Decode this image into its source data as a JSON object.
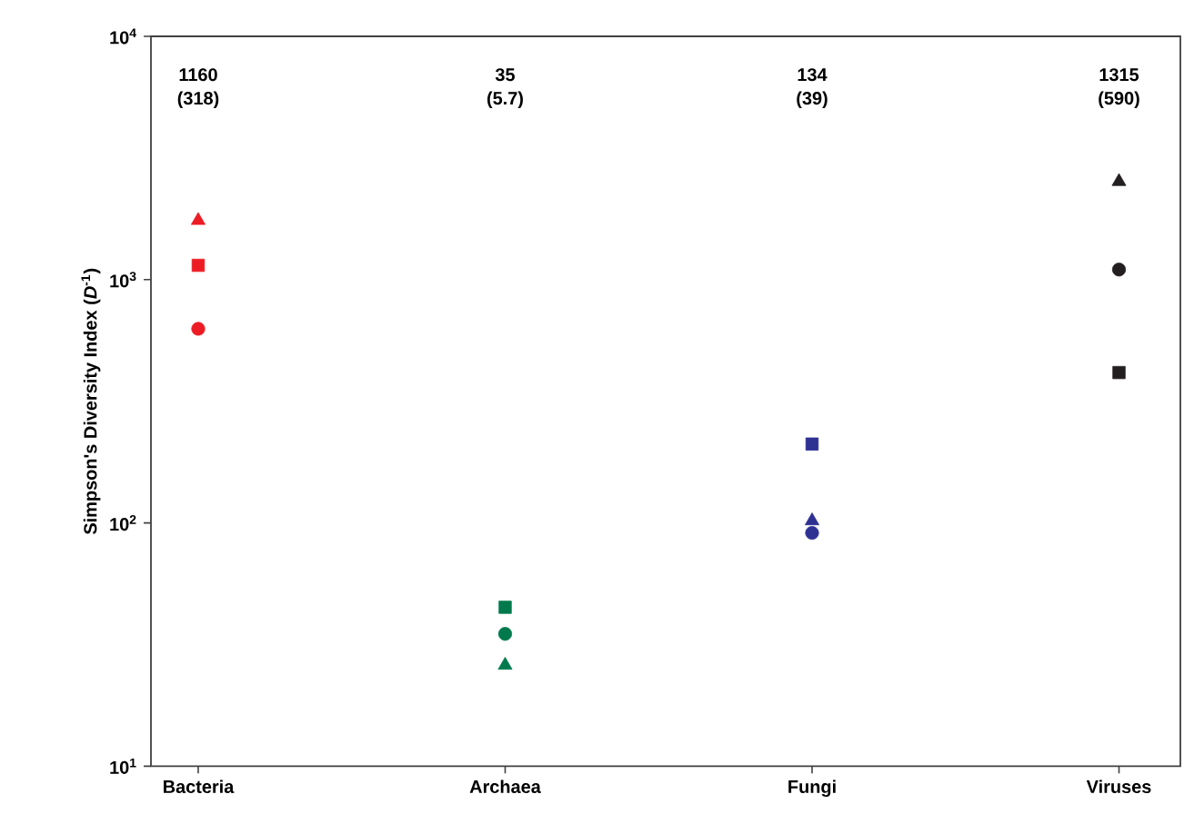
{
  "chart_data": {
    "type": "scatter",
    "ylabel": "Simpson's Diversity Index (*D*$^{-1}$)",
    "categories": [
      "Bacteria",
      "Archaea",
      "Fungi",
      "Viruses"
    ],
    "series": [
      {
        "marker": "triangle",
        "colors": [
          "#ed1c24",
          "#007a4d",
          "#2e3192",
          "#231f20"
        ],
        "values": [
          1750,
          26,
          102,
          2530
        ]
      },
      {
        "marker": "square",
        "colors": [
          "#ed1c24",
          "#007a4d",
          "#2e3192",
          "#231f20"
        ],
        "values": [
          1145,
          45,
          211,
          415
        ]
      },
      {
        "marker": "circle",
        "colors": [
          "#ed1c24",
          "#007a4d",
          "#2e3192",
          "#231f20"
        ],
        "values": [
          628,
          35,
          91,
          1100
        ]
      }
    ],
    "log": true,
    "ylim": [
      10,
      10000
    ],
    "yticks": [
      {
        "value": 10,
        "label": "10$^{1}$"
      },
      {
        "value": 100,
        "label": "10$^{2}$"
      },
      {
        "value": 1000,
        "label": "10$^{3}$"
      },
      {
        "value": 10000,
        "label": "10$^{4}$"
      }
    ],
    "annotations": [
      "1160 (318)",
      "35 (5.7)",
      "134 (39)",
      "1315 (590)"
    ]
  }
}
